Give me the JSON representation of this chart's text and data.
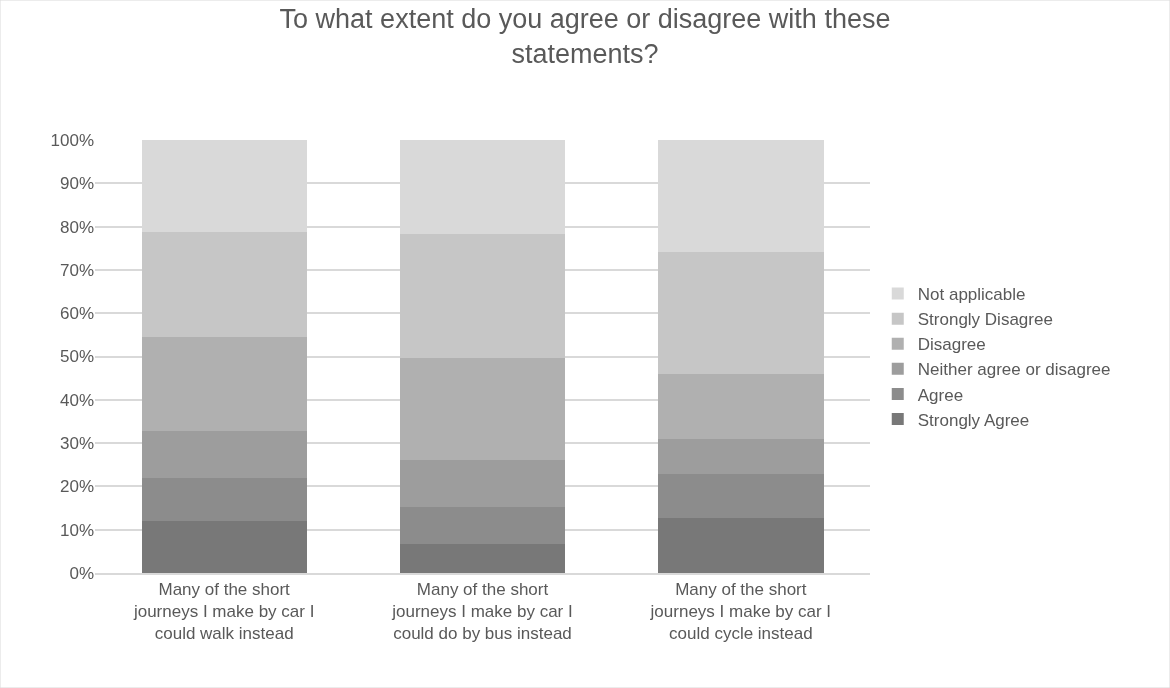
{
  "chart_data": {
    "type": "bar",
    "title": "To what extent do you agree or disagree with these statements?",
    "categories": [
      "Many of the short journeys I make by car I could walk instead",
      "Many of the short journeys I make by car I could do by bus instead",
      "Many of the short journeys I make by car I could cycle instead"
    ],
    "stacked": true,
    "series": [
      {
        "name": "Strongly Agree",
        "color": "#787878",
        "values": [
          12.0,
          6.8,
          12.8
        ]
      },
      {
        "name": "Agree",
        "color": "#8c8c8c",
        "values": [
          10.0,
          8.4,
          10.1
        ]
      },
      {
        "name": "Neither agree or disagree",
        "color": "#9d9d9d",
        "values": [
          10.7,
          11.0,
          8.0
        ]
      },
      {
        "name": "Disagree",
        "color": "#b0b0b0",
        "values": [
          21.8,
          23.4,
          15.1
        ]
      },
      {
        "name": "Strongly Disagree",
        "color": "#c6c6c6",
        "values": [
          24.3,
          28.8,
          28.2
        ]
      },
      {
        "name": "Not applicable",
        "color": "#d9d9d9",
        "values": [
          21.2,
          21.6,
          25.8
        ]
      }
    ],
    "ylim": [
      0,
      100
    ],
    "yticks": [
      {
        "value": 0,
        "label": "0%"
      },
      {
        "value": 10,
        "label": "10%"
      },
      {
        "value": 20,
        "label": "20%"
      },
      {
        "value": 30,
        "label": "30%"
      },
      {
        "value": 40,
        "label": "40%"
      },
      {
        "value": 50,
        "label": "50%"
      },
      {
        "value": 60,
        "label": "60%"
      },
      {
        "value": 70,
        "label": "70%"
      },
      {
        "value": 80,
        "label": "80%"
      },
      {
        "value": 90,
        "label": "90%"
      },
      {
        "value": 100,
        "label": "100%"
      }
    ],
    "grid": "y",
    "legend": "right"
  }
}
